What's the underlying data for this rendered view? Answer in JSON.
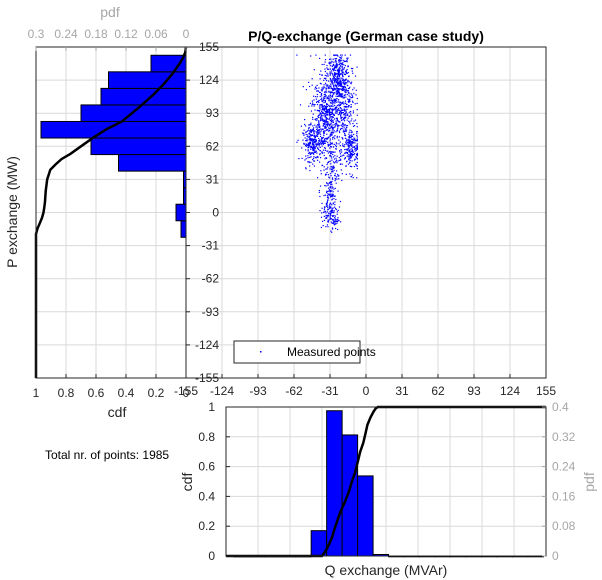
{
  "colors": {
    "bar_fill": "#0000ff",
    "bar_edge": "#000000",
    "cdf_line": "#000000",
    "scatter": "#0000ff",
    "grid": "#d9d9d9",
    "axis": "#262626",
    "secondary_axis": "#a6a6a6"
  },
  "note": "Total nr. of points: 1985",
  "chart_data": [
    {
      "id": "scatter",
      "type": "scatter",
      "title": "P/Q-exchange (German case study)",
      "xlim": [
        -155,
        155
      ],
      "ylim": [
        -155,
        155
      ],
      "xticks": [
        -155,
        -124,
        -93,
        -62,
        -31,
        0,
        31,
        62,
        93,
        124,
        155
      ],
      "yticks": [
        -155,
        -124,
        -93,
        -62,
        -31,
        0,
        31,
        62,
        93,
        124,
        155
      ],
      "grid": true,
      "legend": {
        "label": "Measured points",
        "location": "bottom-left"
      },
      "clusters": [
        {
          "x": -36,
          "y": 84,
          "sx": 6,
          "sy": 15,
          "n": 360
        },
        {
          "x": -24,
          "y": 128,
          "sx": 5,
          "sy": 11,
          "n": 300
        },
        {
          "x": -20,
          "y": 95,
          "sx": 5,
          "sy": 20,
          "n": 260
        },
        {
          "x": -47,
          "y": 65,
          "sx": 4,
          "sy": 8,
          "n": 220
        },
        {
          "x": -13,
          "y": 58,
          "sx": 4,
          "sy": 10,
          "n": 200
        },
        {
          "x": -30,
          "y": 40,
          "sx": 4,
          "sy": 16,
          "n": 160
        },
        {
          "x": -33,
          "y": 5,
          "sx": 3,
          "sy": 9,
          "n": 100
        },
        {
          "x": -29,
          "y": -6,
          "sx": 3,
          "sy": 5,
          "n": 60
        },
        {
          "x": -31,
          "y": 108,
          "sx": 9,
          "sy": 20,
          "n": 325
        }
      ]
    },
    {
      "id": "p-histogram",
      "type": "bar",
      "orientation": "horizontal",
      "primary_axis": {
        "label": "cdf",
        "lim": [
          1,
          0
        ],
        "ticks": [
          1,
          0.8,
          0.6,
          0.4,
          0.2,
          0
        ]
      },
      "secondary_axis": {
        "label": "pdf",
        "lim": [
          0.3,
          0
        ],
        "ticks": [
          0.3,
          0.24,
          0.18,
          0.12,
          0.06,
          0
        ]
      },
      "value_axis": {
        "label": "P exchange (MW)",
        "lim": [
          -155,
          155
        ]
      },
      "bin_centers": [
        -15.5,
        0,
        15.5,
        31,
        46.5,
        62,
        77.5,
        93,
        108.5,
        124,
        139.5
      ],
      "pdf": [
        0.01,
        0.02,
        0.005,
        0.005,
        0.135,
        0.19,
        0.29,
        0.21,
        0.17,
        0.155,
        0.07
      ],
      "cdf": {
        "p": [
          -155,
          -20,
          -15,
          -10,
          -5,
          0,
          5,
          10,
          20,
          31,
          40,
          45,
          50,
          55,
          62,
          70,
          78,
          85,
          93,
          100,
          110,
          120,
          130,
          140,
          145,
          150,
          155
        ],
        "value": [
          1,
          1,
          0.99,
          0.975,
          0.96,
          0.95,
          0.945,
          0.94,
          0.935,
          0.925,
          0.905,
          0.87,
          0.83,
          0.77,
          0.7,
          0.62,
          0.53,
          0.43,
          0.36,
          0.3,
          0.22,
          0.15,
          0.09,
          0.04,
          0.02,
          0.005,
          0
        ]
      }
    },
    {
      "id": "q-histogram",
      "type": "bar",
      "orientation": "vertical",
      "primary_axis": {
        "label": "cdf",
        "lim": [
          0,
          1
        ],
        "ticks": [
          0,
          0.2,
          0.4,
          0.6,
          0.8,
          1
        ]
      },
      "secondary_axis": {
        "label": "pdf",
        "lim": [
          0,
          0.4
        ],
        "ticks": [
          0,
          0.08,
          0.16,
          0.24,
          0.32,
          0.4
        ]
      },
      "value_axis": {
        "label": "Q exchange (MVAr)",
        "lim": [
          -155,
          155
        ]
      },
      "bin_centers": [
        -140,
        -125,
        -110,
        -95,
        -80,
        -65,
        -50,
        -35,
        -20,
        -5,
        10,
        25,
        40,
        55,
        70,
        85,
        100,
        115,
        130,
        145
      ],
      "pdf": [
        0,
        0,
        0,
        0,
        0,
        0.068,
        0.39,
        0.325,
        0.215,
        0.004,
        0,
        0,
        0,
        0,
        0,
        0,
        0,
        0,
        0,
        0
      ],
      "cdf": {
        "q": [
          -155,
          -70,
          -62,
          -58,
          -55,
          -52,
          -50,
          -48,
          -46,
          -44,
          -40,
          -36,
          -33,
          -30,
          -27,
          -25,
          -22,
          -20,
          -18,
          -15,
          -12,
          -10,
          -8,
          -6,
          155
        ],
        "value": [
          0,
          0,
          0,
          0.04,
          0.08,
          0.13,
          0.18,
          0.22,
          0.26,
          0.3,
          0.36,
          0.43,
          0.5,
          0.56,
          0.64,
          0.7,
          0.76,
          0.82,
          0.88,
          0.93,
          0.97,
          0.99,
          1,
          1,
          1
        ]
      }
    }
  ]
}
